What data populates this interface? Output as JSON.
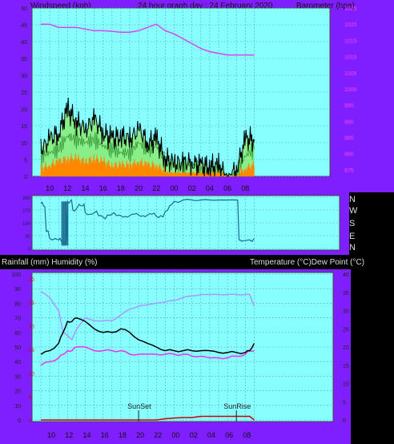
{
  "header": {
    "left": "Windspeed (kph)",
    "center": "24 hour graph day : 24 February 2020",
    "right": "Barometer (hpa)"
  },
  "lower_header": {
    "left": "Rainfall (mm)  Humidity (%)",
    "right": "Temperature (°C)Dew Point (°C)"
  },
  "x_ticks": [
    "10",
    "12",
    "14",
    "16",
    "18",
    "20",
    "22",
    "00",
    "02",
    "04",
    "06",
    "08"
  ],
  "direction_labels": [
    "N",
    "W",
    "S",
    "E",
    "N"
  ],
  "annotations": {
    "sunset": "SunSet",
    "sunrise": "SunRise"
  },
  "colors": {
    "frame": "#7f1fff",
    "plot_bg": "#88ffff",
    "wind_avg": "#ff8800",
    "wind_gust_fill": "#88ee88",
    "wind_gust": "#000000",
    "barometer": "#dd44ee",
    "direction": "#1a6b8e",
    "humidity": "#aa99ff",
    "temperature": "#000000",
    "dewpoint": "#ee33ee",
    "rainfall": "#cc0000"
  },
  "chart_data": [
    {
      "type": "area",
      "ylabel": "Windspeed (kph)",
      "y2label": "Barometer (hpa)",
      "ylim": [
        0,
        50
      ],
      "yticks": [
        "0",
        "5",
        "10",
        "15",
        "20",
        "25",
        "30",
        "35",
        "40",
        "45",
        "50"
      ],
      "y2lim": [
        973,
        1025
      ],
      "y2ticks": [
        "975",
        "980",
        "985",
        "990",
        "995",
        "1000",
        "1005",
        "1010",
        "1015",
        "1020",
        "1025"
      ],
      "grid": true,
      "x": [
        9,
        10,
        11,
        12,
        13,
        14,
        15,
        16,
        17,
        18,
        19,
        20,
        21,
        22,
        23,
        24,
        25,
        26,
        27,
        28,
        29,
        30,
        31,
        32,
        33
      ],
      "series": [
        {
          "values": [
            6,
            7,
            8,
            12,
            11,
            10,
            11,
            9,
            8,
            7,
            7,
            10,
            8,
            9,
            4,
            3,
            3,
            4,
            2,
            2,
            2,
            0,
            1,
            6,
            8
          ]
        },
        {
          "values": [
            8,
            11,
            13,
            20,
            16,
            14,
            17,
            13,
            11,
            12,
            11,
            14,
            10,
            11,
            5,
            4,
            4,
            4,
            3,
            3,
            3,
            0,
            2,
            11,
            11
          ]
        },
        {
          "values": [
            2,
            3,
            4,
            5,
            5,
            4,
            5,
            4,
            3,
            3,
            3,
            4,
            3,
            3,
            1,
            1,
            1,
            1,
            1,
            1,
            1,
            0,
            0,
            2,
            3
          ]
        },
        {
          "values": [
            1020,
            1020,
            1019,
            1019,
            1019,
            1018.5,
            1018,
            1018,
            1017.8,
            1017.5,
            1017.5,
            1018,
            1019,
            1020,
            1018,
            1017,
            1015.5,
            1014,
            1012.5,
            1011.5,
            1011,
            1010.5,
            1010.5,
            1010.5,
            1010.5
          ]
        }
      ]
    },
    {
      "type": "line",
      "ylim": [
        0,
        360
      ],
      "grid": true,
      "x": [
        9,
        9.3,
        9.6,
        10,
        10.6,
        11,
        11.3,
        11.7,
        12,
        12.3,
        12.6,
        13,
        13.3,
        13.7,
        14,
        14.5,
        15,
        15.5,
        16,
        16.5,
        17,
        17.5,
        18,
        18.5,
        19,
        19.5,
        20,
        20.5,
        21,
        21.5,
        22,
        22.5,
        23,
        23.5,
        24,
        25,
        26,
        27,
        28,
        29,
        30,
        31,
        31.3,
        31.6,
        32,
        32.5,
        33
      ],
      "series": [
        {
          "values": [
            315,
            300,
            120,
            70,
            70,
            60,
            50,
            40,
            330,
            330,
            270,
            280,
            310,
            300,
            250,
            240,
            250,
            230,
            220,
            235,
            240,
            230,
            230,
            225,
            230,
            240,
            235,
            230,
            235,
            240,
            225,
            230,
            260,
            300,
            330,
            340,
            340,
            340,
            340,
            340,
            340,
            340,
            60,
            50,
            55,
            60,
            70
          ]
        }
      ]
    },
    {
      "type": "line",
      "ylabel": "Rainfall (mm)  Humidity (%)",
      "y2label": "Temperature (°C)Dew Point (°C)",
      "ylim": [
        0,
        100
      ],
      "yticks": [
        "0",
        "10",
        "20",
        "30",
        "40",
        "50",
        "60",
        "70",
        "80",
        "90",
        "100"
      ],
      "rainticks": [
        "0",
        "5",
        "10",
        "15",
        "20",
        "25",
        "30"
      ],
      "y2lim": [
        0,
        40
      ],
      "y2ticks": [
        "0",
        "5",
        "10",
        "15",
        "20",
        "25",
        "30",
        "35",
        "40"
      ],
      "grid": true,
      "x": [
        9,
        10,
        11,
        11.5,
        12,
        12.5,
        13,
        14,
        15,
        16,
        17,
        18,
        19,
        20,
        21,
        22,
        23,
        24,
        25,
        26,
        27,
        28,
        29,
        30,
        31,
        32,
        32.5,
        33
      ],
      "series": [
        {
          "values": [
            18,
            19,
            21,
            24,
            27,
            27,
            28,
            27,
            25,
            24,
            24,
            25,
            24,
            22,
            21,
            20,
            19,
            19,
            19,
            19,
            19,
            19,
            18.5,
            18.5,
            18.5,
            18.5,
            19,
            21
          ]
        },
        {
          "values": [
            15,
            16,
            17,
            18,
            19,
            19,
            20,
            20,
            19,
            19,
            19,
            19,
            18,
            18,
            18,
            18,
            18,
            18,
            18,
            17.5,
            17.5,
            17,
            17,
            17,
            17.5,
            18,
            19,
            19
          ]
        },
        {
          "values": [
            88,
            84,
            75,
            60,
            58,
            55,
            62,
            70,
            68,
            68,
            68,
            72,
            76,
            78,
            79,
            80,
            81,
            82,
            84,
            85,
            86,
            86,
            86,
            86,
            86,
            86,
            86,
            78
          ]
        },
        {
          "values": [
            0,
            0,
            0,
            0,
            0,
            0,
            0,
            0,
            0,
            0,
            0,
            0,
            0,
            0,
            0,
            0,
            0.5,
            0.8,
            1,
            1,
            1.5,
            1.5,
            1.5,
            1.5,
            1.5,
            1.5,
            1.5,
            0
          ]
        }
      ]
    }
  ]
}
